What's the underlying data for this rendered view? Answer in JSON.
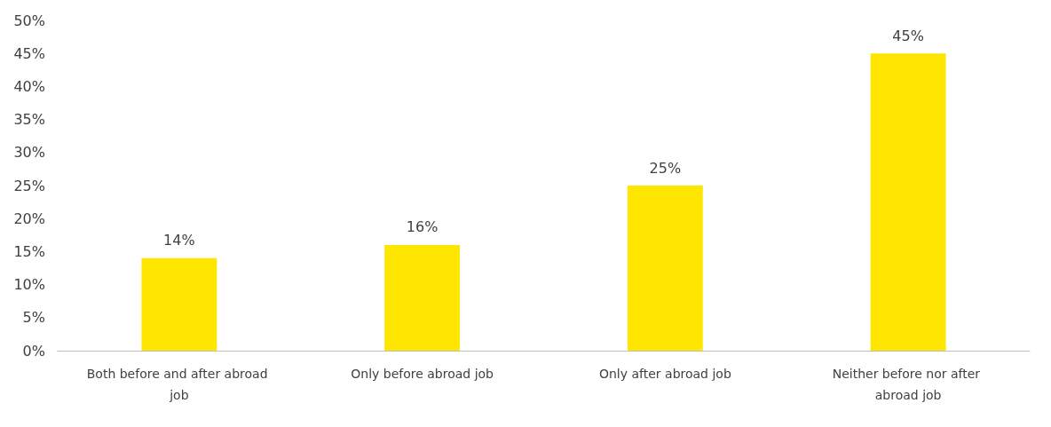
{
  "chart_data": {
    "type": "bar",
    "categories": [
      "Both before and after abroad job",
      "Only before abroad job",
      "Only after abroad job",
      "Neither before nor after abroad job"
    ],
    "values": [
      14,
      16,
      25,
      45
    ],
    "color": "#ffe600",
    "value_labels": [
      "14%",
      "16%",
      "25%",
      "45%"
    ],
    "ylim": [
      0,
      50
    ],
    "yticks": [
      {
        "value": 0,
        "label": "0%"
      },
      {
        "value": 5,
        "label": "5%"
      },
      {
        "value": 10,
        "label": "10%"
      },
      {
        "value": 15,
        "label": "15%"
      },
      {
        "value": 20,
        "label": "20%"
      },
      {
        "value": 25,
        "label": "25%"
      },
      {
        "value": 30,
        "label": "30%"
      },
      {
        "value": 35,
        "label": "35%"
      },
      {
        "value": 40,
        "label": "40%"
      },
      {
        "value": 45,
        "label": "45%"
      },
      {
        "value": 50,
        "label": "50%"
      }
    ],
    "grid": false
  }
}
